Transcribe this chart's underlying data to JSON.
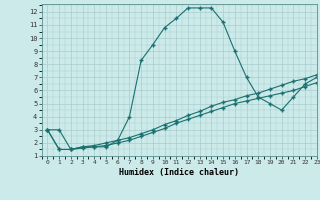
{
  "xlabel": "Humidex (Indice chaleur)",
  "xlim": [
    -0.5,
    23
  ],
  "ylim": [
    1,
    12.6
  ],
  "xticks": [
    0,
    1,
    2,
    3,
    4,
    5,
    6,
    7,
    8,
    9,
    10,
    11,
    12,
    13,
    14,
    15,
    16,
    17,
    18,
    19,
    20,
    21,
    22,
    23
  ],
  "yticks": [
    1,
    2,
    3,
    4,
    5,
    6,
    7,
    8,
    9,
    10,
    11,
    12
  ],
  "bg_color": "#cceaea",
  "grid_color": "#aacccc",
  "line_color": "#1a7070",
  "line1_x": [
    0,
    1,
    2,
    3,
    4,
    5,
    6,
    7,
    8,
    9,
    10,
    11,
    12,
    13,
    14,
    15,
    16,
    17,
    18,
    19,
    20,
    21,
    22,
    23
  ],
  "line1_y": [
    3.0,
    3.0,
    1.5,
    1.7,
    1.7,
    1.7,
    2.2,
    4.0,
    8.3,
    9.5,
    10.8,
    11.5,
    12.3,
    12.3,
    12.3,
    11.2,
    9.0,
    7.0,
    5.5,
    5.0,
    4.5,
    5.5,
    6.5,
    7.0
  ],
  "line2_x": [
    0,
    1,
    2,
    3,
    4,
    5,
    6,
    7,
    8,
    9,
    10,
    11,
    12,
    13,
    14,
    15,
    16,
    17,
    18,
    19,
    20,
    21,
    22,
    23
  ],
  "line2_y": [
    3.0,
    1.5,
    1.5,
    1.6,
    1.7,
    1.8,
    2.0,
    2.2,
    2.5,
    2.8,
    3.1,
    3.5,
    3.8,
    4.1,
    4.4,
    4.7,
    5.0,
    5.2,
    5.4,
    5.6,
    5.8,
    6.0,
    6.3,
    6.6
  ],
  "line3_x": [
    0,
    1,
    2,
    3,
    4,
    5,
    6,
    7,
    8,
    9,
    10,
    11,
    12,
    13,
    14,
    15,
    16,
    17,
    18,
    19,
    20,
    21,
    22,
    23
  ],
  "line3_y": [
    3.0,
    1.5,
    1.5,
    1.7,
    1.8,
    2.0,
    2.2,
    2.4,
    2.7,
    3.0,
    3.4,
    3.7,
    4.1,
    4.4,
    4.8,
    5.1,
    5.3,
    5.6,
    5.8,
    6.1,
    6.4,
    6.7,
    6.9,
    7.2
  ]
}
